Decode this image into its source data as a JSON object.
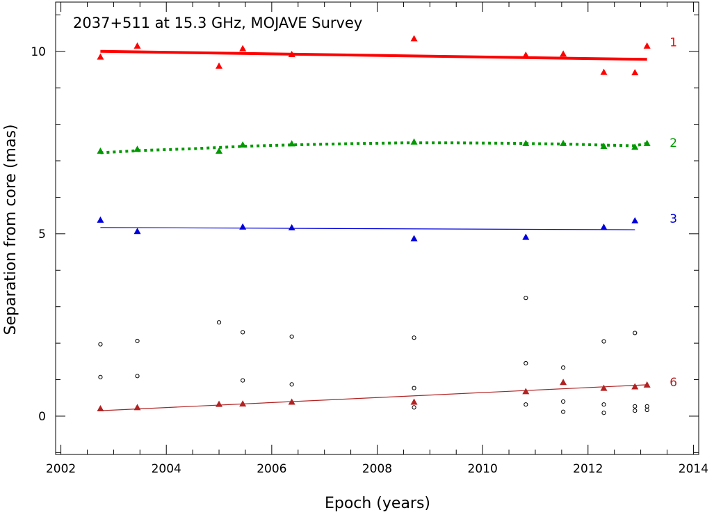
{
  "chart_data": {
    "type": "scatter",
    "title": "2037+511 at 15.3 GHz, MOJAVE Survey",
    "xlabel": "Epoch (years)",
    "ylabel": "Separation from core (mas)",
    "xlim": [
      2001.9,
      2014.1
    ],
    "ylim": [
      -1.05,
      11.35
    ],
    "x_ticks": [
      2002,
      2004,
      2006,
      2008,
      2010,
      2012,
      2014
    ],
    "y_ticks": [
      0,
      5,
      10
    ],
    "x_tick_labels": [
      "2002",
      "2004",
      "2006",
      "2008",
      "2010",
      "2012",
      "2014"
    ],
    "y_tick_labels": [
      "0",
      "5",
      "10"
    ],
    "grid": false,
    "series": [
      {
        "name": "1",
        "color": "#ff0000",
        "marker": "triangle",
        "line_style": "solid",
        "line_width": "thick",
        "x": [
          2002.75,
          2003.45,
          2005.0,
          2005.45,
          2006.38,
          2008.7,
          2010.82,
          2011.53,
          2012.3,
          2012.89,
          2013.12
        ],
        "y": [
          9.85,
          10.15,
          9.6,
          10.08,
          9.92,
          10.35,
          9.9,
          9.93,
          9.43,
          9.42,
          10.15
        ],
        "fit": {
          "x": [
            2002.75,
            2013.12
          ],
          "y": [
            10.0,
            9.78
          ]
        }
      },
      {
        "name": "2",
        "color": "#009900",
        "marker": "triangle",
        "line_style": "dotted",
        "x": [
          2002.75,
          2003.45,
          2005.0,
          2005.45,
          2006.38,
          2008.7,
          2010.82,
          2011.53,
          2012.3,
          2012.89,
          2013.12
        ],
        "y": [
          7.27,
          7.32,
          7.27,
          7.44,
          7.47,
          7.52,
          7.48,
          7.48,
          7.4,
          7.38,
          7.48
        ],
        "fit": {
          "x": [
            2002.75,
            2003.5,
            2004.5,
            2005.5,
            2006.5,
            2007.5,
            2008.5,
            2009.5,
            2010.5,
            2011.5,
            2012.3,
            2012.89,
            2013.12
          ],
          "y": [
            7.22,
            7.28,
            7.33,
            7.4,
            7.44,
            7.47,
            7.49,
            7.49,
            7.48,
            7.46,
            7.43,
            7.41,
            7.48
          ]
        }
      },
      {
        "name": "3",
        "color": "#0000dd",
        "marker": "triangle",
        "line_style": "solid",
        "line_width": "thin",
        "x": [
          2002.75,
          2003.45,
          2005.45,
          2006.38,
          2008.7,
          2010.82,
          2012.3,
          2012.89
        ],
        "y": [
          5.38,
          5.07,
          5.19,
          5.17,
          4.87,
          4.91,
          5.18,
          5.36
        ],
        "fit": {
          "x": [
            2002.75,
            2012.89
          ],
          "y": [
            5.17,
            5.11
          ]
        }
      },
      {
        "name": "6",
        "color": "#b22222",
        "marker": "triangle",
        "line_style": "solid",
        "line_width": "thin",
        "x": [
          2002.75,
          2003.45,
          2005.0,
          2005.45,
          2006.38,
          2008.7,
          2010.82,
          2011.53,
          2012.3,
          2012.89,
          2013.12
        ],
        "y": [
          0.21,
          0.24,
          0.33,
          0.34,
          0.39,
          0.39,
          0.68,
          0.93,
          0.77,
          0.81,
          0.86
        ],
        "fit": {
          "x": [
            2002.75,
            2013.12
          ],
          "y": [
            0.15,
            0.86
          ]
        }
      }
    ],
    "unidentified_components": {
      "color": "#000000",
      "marker": "open-circle",
      "x": [
        2002.75,
        2002.75,
        2003.45,
        2003.45,
        2005.0,
        2005.45,
        2005.45,
        2006.38,
        2006.38,
        2008.7,
        2008.7,
        2008.7,
        2010.82,
        2010.82,
        2010.82,
        2011.53,
        2011.53,
        2011.53,
        2012.3,
        2012.3,
        2012.3,
        2012.89,
        2012.89,
        2012.89,
        2013.12,
        2013.12
      ],
      "y": [
        1.97,
        1.07,
        2.06,
        1.1,
        2.57,
        2.3,
        0.98,
        2.18,
        0.87,
        2.15,
        0.77,
        0.24,
        3.24,
        1.45,
        0.32,
        1.33,
        0.4,
        0.12,
        2.05,
        0.32,
        0.09,
        2.28,
        0.27,
        0.15,
        0.27,
        0.17
      ]
    }
  }
}
